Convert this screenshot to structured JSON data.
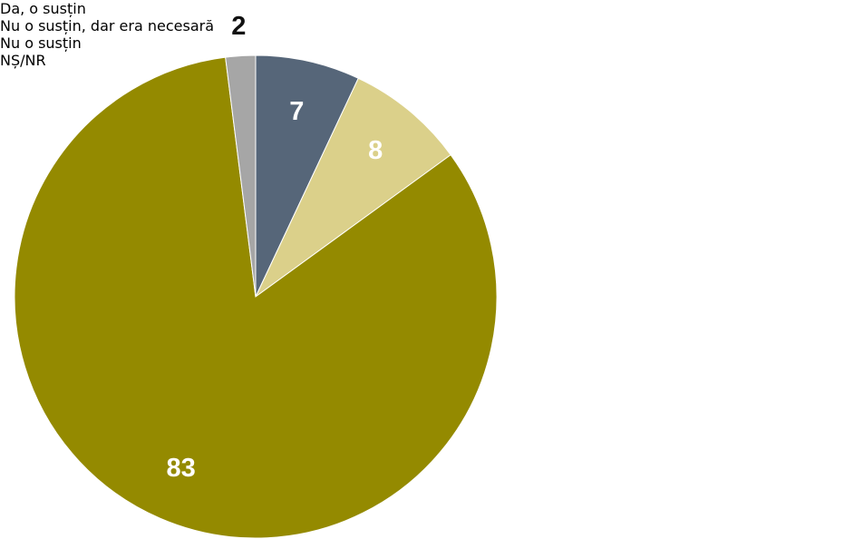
{
  "chart_data": {
    "type": "pie",
    "categories": [
      "Da, o susțin",
      "Nu o susțin, dar era necesară",
      "Nu o susțin",
      "NȘ/NR"
    ],
    "values": [
      7,
      8,
      83,
      2
    ],
    "colors": [
      "#566679",
      "#dbd08a",
      "#948a00",
      "#a6a6a6"
    ],
    "legend": "right"
  }
}
